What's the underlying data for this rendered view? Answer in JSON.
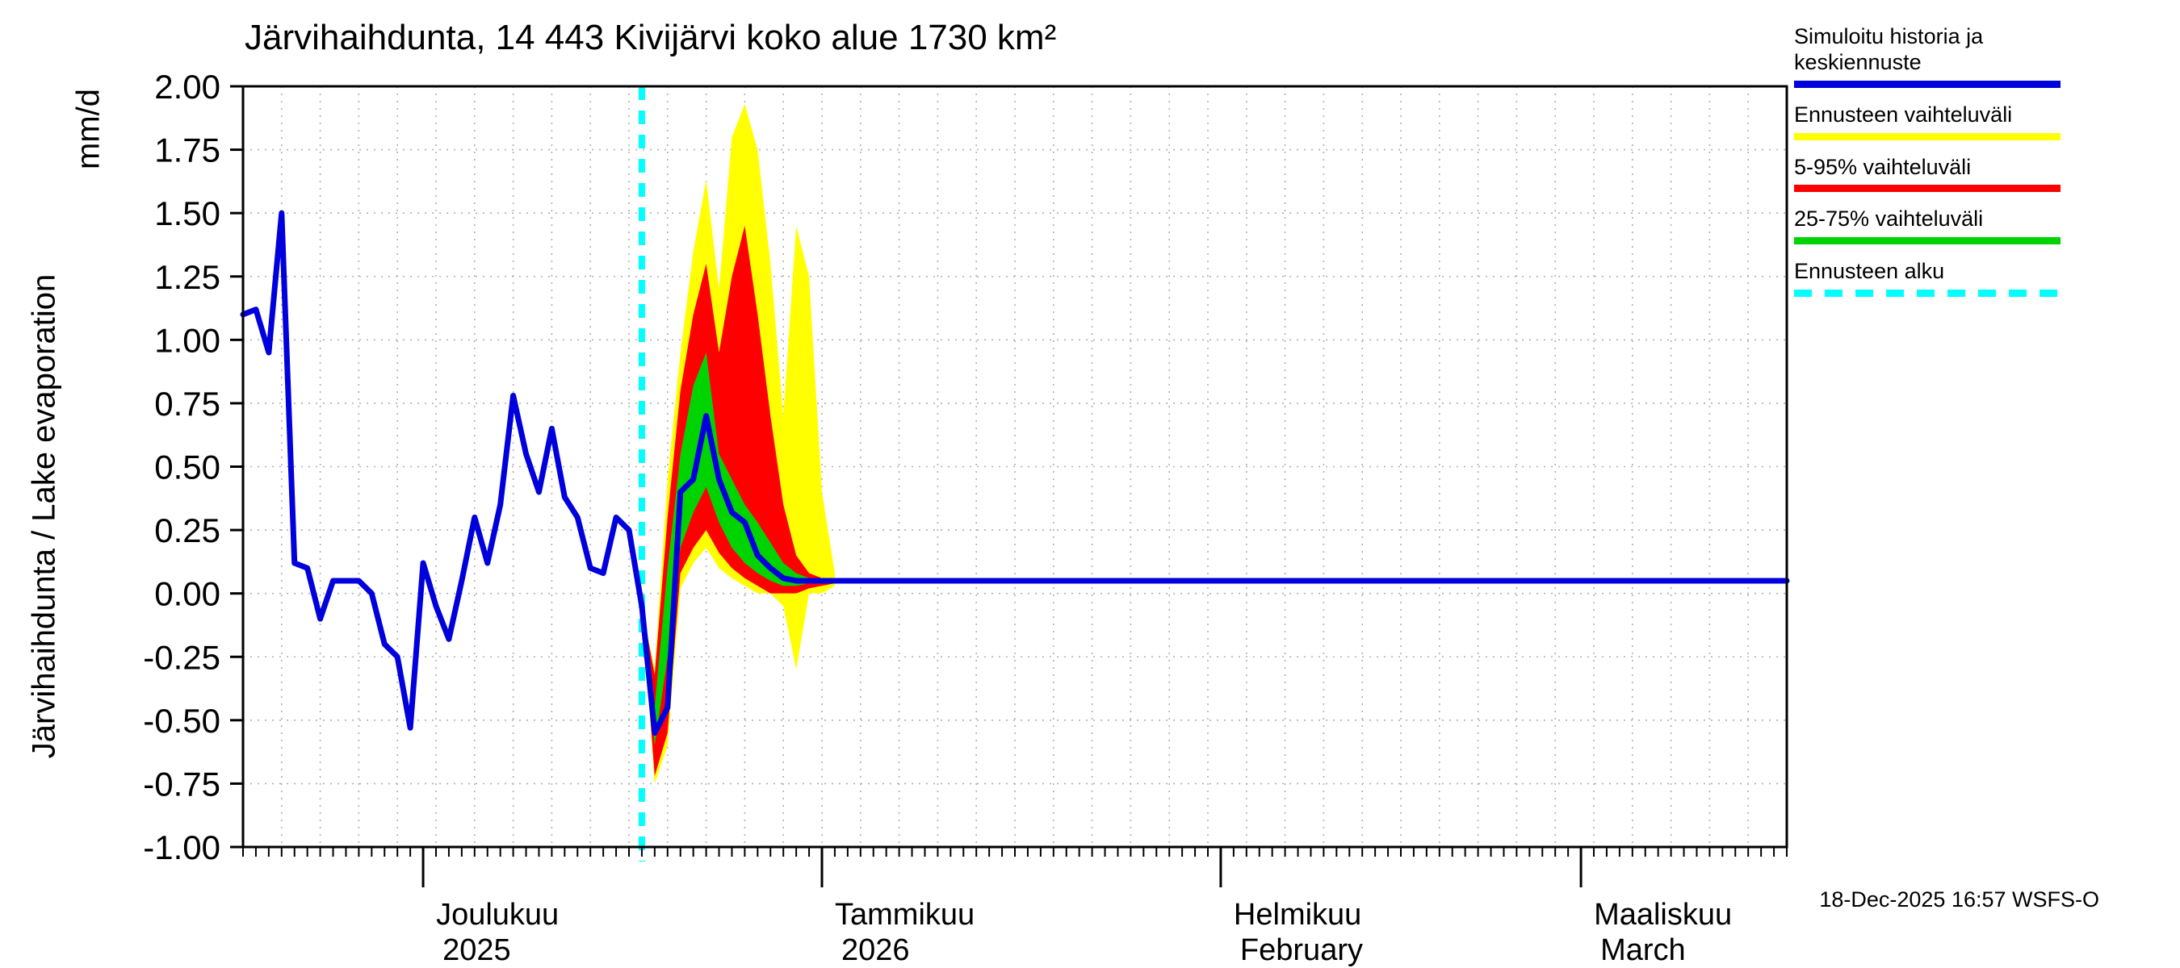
{
  "title": "Järvihaihdunta, 14 443 Kivijärvi koko alue 1730 km²",
  "y_axis": {
    "label": "Järvihaihdunta / Lake evaporation",
    "unit": "mm/d"
  },
  "timestamp": "18-Dec-2025 16:57 WSFS-O",
  "legend": [
    {
      "label": "Simuloitu historia ja keskiennuste",
      "color": "#0000dd",
      "style": "solid"
    },
    {
      "label": "Ennusteen vaihteluväli",
      "color": "#ffff00",
      "style": "solid"
    },
    {
      "label": "5-95% vaihteluväli",
      "color": "#ff0000",
      "style": "solid"
    },
    {
      "label": "25-75% vaihteluväli",
      "color": "#00d400",
      "style": "solid"
    },
    {
      "label": "Ennusteen alku",
      "color": "#00ffff",
      "style": "dashed"
    }
  ],
  "chart_data": {
    "type": "line",
    "title": "Järvihaihdunta, 14 443 Kivijärvi koko alue 1730 km²",
    "ylabel": "Järvihaihdunta / Lake evaporation (mm/d)",
    "ylim": [
      -1.0,
      2.0
    ],
    "ytick_labels": [
      "2.00",
      "1.75",
      "1.50",
      "1.25",
      "1.00",
      "0.75",
      "0.50",
      "0.25",
      "0.00",
      "-0.25",
      "-0.50",
      "-0.75",
      "-1.00"
    ],
    "x_days_total": 120,
    "x_grid_step_days": 3,
    "forecast_start_day": 31,
    "grid_color": "#b0b0b0",
    "frame_color": "#000000",
    "months": [
      {
        "name": "Joulukuu",
        "sub": "2025",
        "start_day": 14
      },
      {
        "name": "Tammikuu",
        "sub": "2026",
        "start_day": 45
      },
      {
        "name": "Helmikuu",
        "sub": "February",
        "start_day": 76
      },
      {
        "name": "Maaliskuu",
        "sub": "March",
        "start_day": 104
      }
    ],
    "series": {
      "mean": {
        "name": "Simuloitu historia ja keskiennuste",
        "color": "#0000dd",
        "points": [
          [
            0,
            1.1
          ],
          [
            1,
            1.12
          ],
          [
            2,
            0.95
          ],
          [
            3,
            1.5
          ],
          [
            4,
            0.12
          ],
          [
            5,
            0.1
          ],
          [
            6,
            -0.1
          ],
          [
            7,
            0.05
          ],
          [
            8,
            0.05
          ],
          [
            9,
            0.05
          ],
          [
            10,
            0.0
          ],
          [
            11,
            -0.2
          ],
          [
            12,
            -0.25
          ],
          [
            13,
            -0.53
          ],
          [
            14,
            0.12
          ],
          [
            15,
            -0.05
          ],
          [
            16,
            -0.18
          ],
          [
            17,
            0.05
          ],
          [
            18,
            0.3
          ],
          [
            19,
            0.12
          ],
          [
            20,
            0.35
          ],
          [
            21,
            0.78
          ],
          [
            22,
            0.55
          ],
          [
            23,
            0.4
          ],
          [
            24,
            0.65
          ],
          [
            25,
            0.38
          ],
          [
            26,
            0.3
          ],
          [
            27,
            0.1
          ],
          [
            28,
            0.08
          ],
          [
            29,
            0.3
          ],
          [
            30,
            0.25
          ],
          [
            31,
            -0.05
          ],
          [
            31.5,
            -0.3
          ],
          [
            32,
            -0.55
          ],
          [
            33,
            -0.45
          ],
          [
            34,
            0.4
          ],
          [
            35,
            0.45
          ],
          [
            36,
            0.7
          ],
          [
            37,
            0.45
          ],
          [
            38,
            0.32
          ],
          [
            39,
            0.28
          ],
          [
            40,
            0.15
          ],
          [
            41,
            0.1
          ],
          [
            42,
            0.06
          ],
          [
            43,
            0.05
          ],
          [
            46,
            0.05
          ],
          [
            120,
            0.05
          ]
        ]
      }
    },
    "bands": {
      "days": [
        31,
        32,
        33,
        34,
        35,
        36,
        37,
        38,
        39,
        40,
        41,
        42,
        43,
        44,
        45,
        46
      ],
      "range_full": {
        "name": "Ennusteen vaihteluväli",
        "color": "#ffff00",
        "hi": [
          -0.05,
          -0.3,
          0.45,
          0.95,
          1.35,
          1.63,
          1.2,
          1.8,
          1.93,
          1.75,
          1.3,
          0.7,
          1.45,
          1.25,
          0.4,
          0.08
        ],
        "lo": [
          -0.05,
          -0.75,
          -0.6,
          0.02,
          0.12,
          0.18,
          0.1,
          0.06,
          0.03,
          0.0,
          0.0,
          -0.05,
          -0.3,
          0.0,
          0.0,
          0.03
        ]
      },
      "p5_95": {
        "name": "5-95% vaihteluväli",
        "color": "#ff0000",
        "hi": [
          -0.05,
          -0.32,
          0.3,
          0.8,
          1.1,
          1.3,
          0.95,
          1.25,
          1.45,
          1.1,
          0.7,
          0.35,
          0.15,
          0.08,
          0.06,
          0.05
        ],
        "lo": [
          -0.05,
          -0.72,
          -0.55,
          0.08,
          0.18,
          0.25,
          0.16,
          0.1,
          0.06,
          0.03,
          0.0,
          0.0,
          0.0,
          0.02,
          0.03,
          0.04
        ]
      },
      "p25_75": {
        "name": "25-75% vaihteluväli",
        "color": "#00d400",
        "hi": [
          -0.05,
          -0.45,
          0.1,
          0.55,
          0.82,
          0.95,
          0.55,
          0.45,
          0.35,
          0.28,
          0.2,
          0.12,
          0.08,
          0.06,
          0.05,
          0.05
        ],
        "lo": [
          -0.05,
          -0.6,
          -0.25,
          0.18,
          0.32,
          0.42,
          0.28,
          0.18,
          0.12,
          0.08,
          0.05,
          0.03,
          0.03,
          0.04,
          0.04,
          0.05
        ]
      }
    },
    "forecast_start": {
      "name": "Ennusteen alku",
      "color": "#00ffff"
    }
  }
}
